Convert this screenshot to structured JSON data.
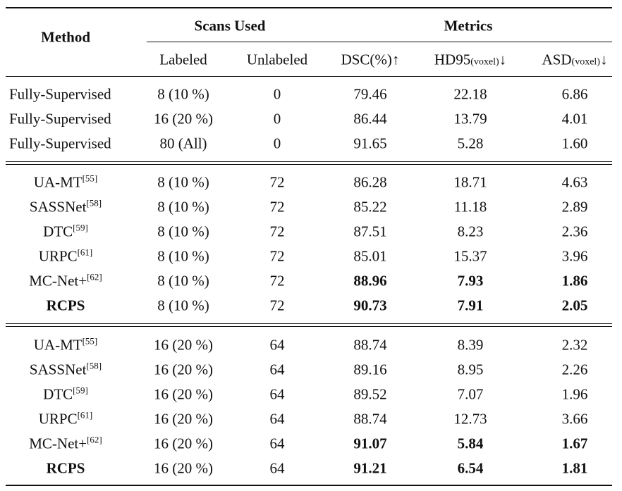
{
  "header": {
    "method": "Method",
    "scans_used": "Scans Used",
    "metrics": "Metrics",
    "labeled": "Labeled",
    "unlabeled": "Unlabeled",
    "dsc": "DSC(%)↑",
    "hd95_main": "HD95",
    "hd95_unit": "(voxel)",
    "hd95_arrow": "↓",
    "asd_main": "ASD",
    "asd_unit": "(voxel)",
    "asd_arrow": "↓"
  },
  "groups": [
    {
      "rows": [
        {
          "method": "Fully-Supervised",
          "ref": "",
          "labeled": "8 (10 %)",
          "unlabeled": "0",
          "dsc": "79.46",
          "hd95": "22.18",
          "asd": "6.86",
          "bold": []
        },
        {
          "method": "Fully-Supervised",
          "ref": "",
          "labeled": "16 (20 %)",
          "unlabeled": "0",
          "dsc": "86.44",
          "hd95": "13.79",
          "asd": "4.01",
          "bold": []
        },
        {
          "method": "Fully-Supervised",
          "ref": "",
          "labeled": "80 (All)",
          "unlabeled": "0",
          "dsc": "91.65",
          "hd95": "5.28",
          "asd": "1.60",
          "bold": []
        }
      ]
    },
    {
      "rows": [
        {
          "method": "UA-MT",
          "ref": "[55]",
          "labeled": "8 (10 %)",
          "unlabeled": "72",
          "dsc": "86.28",
          "hd95": "18.71",
          "asd": "4.63",
          "bold": []
        },
        {
          "method": "SASSNet",
          "ref": "[58]",
          "labeled": "8 (10 %)",
          "unlabeled": "72",
          "dsc": "85.22",
          "hd95": "11.18",
          "asd": "2.89",
          "bold": []
        },
        {
          "method": "DTC",
          "ref": "[59]",
          "labeled": "8 (10 %)",
          "unlabeled": "72",
          "dsc": "87.51",
          "hd95": "8.23",
          "asd": "2.36",
          "bold": []
        },
        {
          "method": "URPC",
          "ref": "[61]",
          "labeled": "8 (10 %)",
          "unlabeled": "72",
          "dsc": "85.01",
          "hd95": "15.37",
          "asd": "3.96",
          "bold": []
        },
        {
          "method": "MC-Net+",
          "ref": "[62]",
          "labeled": "8 (10 %)",
          "unlabeled": "72",
          "dsc": "88.96",
          "hd95": "7.93",
          "asd": "1.86",
          "bold": [
            "dsc",
            "hd95",
            "asd"
          ]
        },
        {
          "method": "RCPS",
          "ref": "",
          "labeled": "8 (10 %)",
          "unlabeled": "72",
          "dsc": "90.73",
          "hd95": "7.91",
          "asd": "2.05",
          "bold": [
            "method",
            "dsc",
            "hd95",
            "asd"
          ]
        }
      ]
    },
    {
      "rows": [
        {
          "method": "UA-MT",
          "ref": "[55]",
          "labeled": "16 (20 %)",
          "unlabeled": "64",
          "dsc": "88.74",
          "hd95": "8.39",
          "asd": "2.32",
          "bold": []
        },
        {
          "method": "SASSNet",
          "ref": "[58]",
          "labeled": "16 (20 %)",
          "unlabeled": "64",
          "dsc": "89.16",
          "hd95": "8.95",
          "asd": "2.26",
          "bold": []
        },
        {
          "method": "DTC",
          "ref": "[59]",
          "labeled": "16 (20 %)",
          "unlabeled": "64",
          "dsc": "89.52",
          "hd95": "7.07",
          "asd": "1.96",
          "bold": []
        },
        {
          "method": "URPC",
          "ref": "[61]",
          "labeled": "16 (20 %)",
          "unlabeled": "64",
          "dsc": "88.74",
          "hd95": "12.73",
          "asd": "3.66",
          "bold": []
        },
        {
          "method": "MC-Net+",
          "ref": "[62]",
          "labeled": "16 (20 %)",
          "unlabeled": "64",
          "dsc": "91.07",
          "hd95": "5.84",
          "asd": "1.67",
          "bold": [
            "dsc",
            "hd95",
            "asd"
          ]
        },
        {
          "method": "RCPS",
          "ref": "",
          "labeled": "16 (20 %)",
          "unlabeled": "64",
          "dsc": "91.21",
          "hd95": "6.54",
          "asd": "1.81",
          "bold": [
            "method",
            "dsc",
            "hd95",
            "asd"
          ]
        }
      ]
    }
  ]
}
